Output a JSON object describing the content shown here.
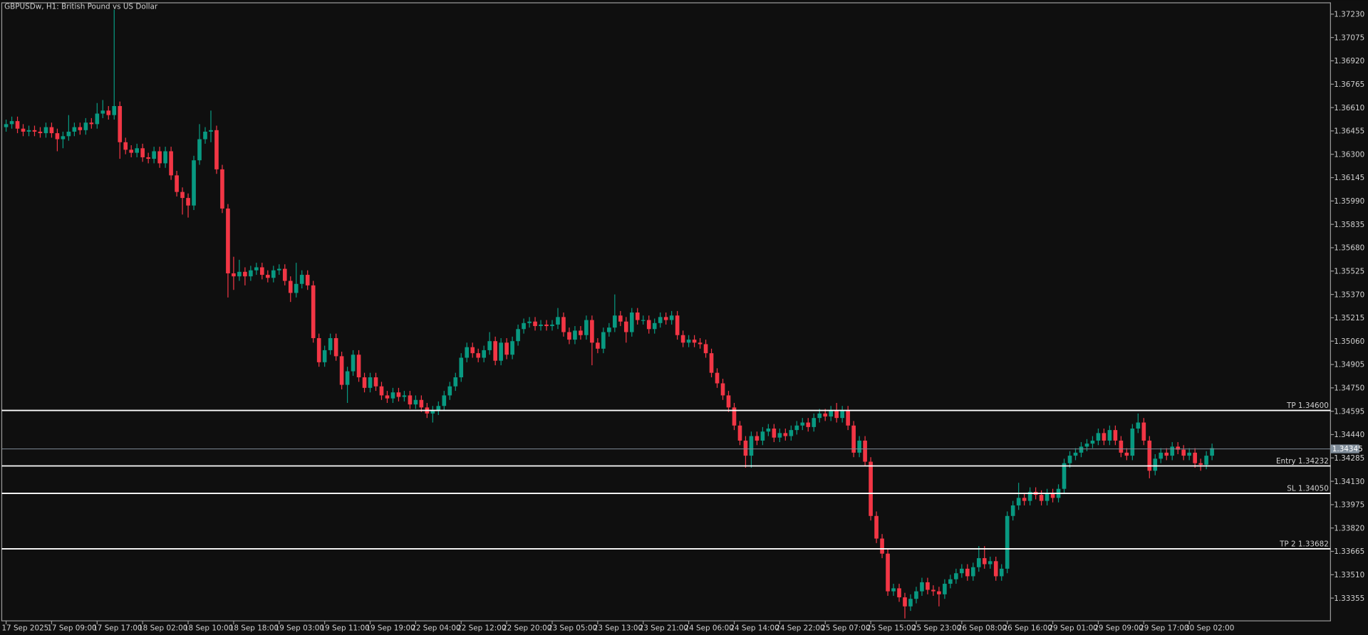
{
  "chart_data": {
    "type": "candlestick",
    "title": "GBPUSDw, H1:  British Pound vs US Dollar",
    "categories": [
      "17 Sep 2025",
      null,
      null,
      null,
      null,
      null,
      null,
      null,
      "17 Sep 09:00",
      null,
      null,
      null,
      null,
      null,
      null,
      null,
      "17 Sep 17:00",
      null,
      null,
      null,
      null,
      null,
      null,
      null,
      "18 Sep 02:00",
      null,
      null,
      null,
      null,
      null,
      null,
      null,
      "18 Sep 10:00",
      null,
      null,
      null,
      null,
      null,
      null,
      null,
      "18 Sep 18:00",
      null,
      null,
      null,
      null,
      null,
      null,
      null,
      "19 Sep 03:00",
      null,
      null,
      null,
      null,
      null,
      null,
      null,
      "19 Sep 11:00",
      null,
      null,
      null,
      null,
      null,
      null,
      null,
      "19 Sep 19:00",
      null,
      null,
      null,
      null,
      null,
      null,
      null,
      "22 Sep 04:00",
      null,
      null,
      null,
      null,
      null,
      null,
      null,
      "22 Sep 12:00",
      null,
      null,
      null,
      null,
      null,
      null,
      null,
      "22 Sep 20:00",
      null,
      null,
      null,
      null,
      null,
      null,
      null,
      "23 Sep 05:00",
      null,
      null,
      null,
      null,
      null,
      null,
      null,
      "23 Sep 13:00",
      null,
      null,
      null,
      null,
      null,
      null,
      null,
      "23 Sep 21:00",
      null,
      null,
      null,
      null,
      null,
      null,
      null,
      "24 Sep 06:00",
      null,
      null,
      null,
      null,
      null,
      null,
      null,
      "24 Sep 14:00",
      null,
      null,
      null,
      null,
      null,
      null,
      null,
      "24 Sep 22:00",
      null,
      null,
      null,
      null,
      null,
      null,
      null,
      "25 Sep 07:00",
      null,
      null,
      null,
      null,
      null,
      null,
      null,
      "25 Sep 15:00",
      null,
      null,
      null,
      null,
      null,
      null,
      null,
      "25 Sep 23:00",
      null,
      null,
      null,
      null,
      null,
      null,
      null,
      "26 Sep 08:00",
      null,
      null,
      null,
      null,
      null,
      null,
      null,
      "26 Sep 16:00",
      null,
      null,
      null,
      null,
      null,
      null,
      null,
      "29 Sep 01:00",
      null,
      null,
      null,
      null,
      null,
      null,
      null,
      "29 Sep 09:00",
      null,
      null,
      null,
      null,
      null,
      null,
      null,
      "29 Sep 17:00",
      null,
      null,
      null,
      null,
      null,
      null,
      null,
      "30 Sep 02:00",
      null,
      null,
      null,
      null
    ],
    "open": [
      1.3648,
      1.365,
      1.3652,
      1.3647,
      1.3645,
      1.3646,
      1.3645,
      1.3644,
      1.3648,
      1.3644,
      1.364,
      1.3642,
      1.3645,
      1.3648,
      1.3646,
      1.3651,
      1.365,
      1.3657,
      1.3659,
      1.3656,
      1.3662,
      1.3638,
      1.3633,
      1.3631,
      1.3634,
      1.3628,
      1.3627,
      1.3632,
      1.3624,
      1.3632,
      1.3616,
      1.3605,
      1.3601,
      1.3596,
      1.3626,
      1.364,
      1.3645,
      1.3646,
      1.362,
      1.3594,
      1.3551,
      1.3549,
      1.3552,
      1.3549,
      1.3553,
      1.3555,
      1.355,
      1.3548,
      1.3553,
      1.3554,
      1.3546,
      1.3538,
      1.3544,
      1.355,
      1.3543,
      1.3508,
      1.3492,
      1.35,
      1.3508,
      1.3496,
      1.3477,
      1.3486,
      1.3497,
      1.3482,
      1.3475,
      1.3482,
      1.3476,
      1.347,
      1.3468,
      1.3472,
      1.3469,
      1.347,
      1.3464,
      1.3467,
      1.3462,
      1.3458,
      1.346,
      1.3463,
      1.347,
      1.3476,
      1.3482,
      1.3495,
      1.3502,
      1.3498,
      1.3495,
      1.35,
      1.3506,
      1.3493,
      1.3505,
      1.3497,
      1.3506,
      1.3514,
      1.3518,
      1.3519,
      1.3516,
      1.3517,
      1.3516,
      1.3517,
      1.3522,
      1.3512,
      1.3507,
      1.3513,
      1.351,
      1.352,
      1.3505,
      1.3501,
      1.3512,
      1.3515,
      1.3523,
      1.3519,
      1.3512,
      1.3525,
      1.352,
      1.352,
      1.3514,
      1.3518,
      1.3522,
      1.352,
      1.3523,
      1.351,
      1.3505,
      1.3507,
      1.3505,
      1.3504,
      1.3498,
      1.3485,
      1.3478,
      1.347,
      1.3462,
      1.345,
      1.344,
      1.343,
      1.3443,
      1.344,
      1.3446,
      1.3448,
      1.3442,
      1.3445,
      1.3443,
      1.3447,
      1.345,
      1.3452,
      1.3449,
      1.3455,
      1.3458,
      1.3456,
      1.346,
      1.3455,
      1.346,
      1.345,
      1.3432,
      1.344,
      1.3426,
      1.339,
      1.3375,
      1.3365,
      1.334,
      1.3342,
      1.3336,
      1.333,
      1.3335,
      1.334,
      1.3346,
      1.3341,
      1.334,
      1.3338,
      1.3345,
      1.3348,
      1.3352,
      1.3355,
      1.335,
      1.3356,
      1.3362,
      1.3358,
      1.336,
      1.335,
      1.3355,
      1.339,
      1.3397,
      1.3402,
      1.34,
      1.3406,
      1.3404,
      1.34,
      1.3405,
      1.3402,
      1.3408,
      1.3425,
      1.343,
      1.3432,
      1.3436,
      1.3438,
      1.344,
      1.3445,
      1.344,
      1.3447,
      1.344,
      1.3432,
      1.343,
      1.3448,
      1.3452,
      1.344,
      1.342,
      1.3428,
      1.3432,
      1.343,
      1.3436,
      1.3434,
      1.343,
      1.3432,
      1.3425,
      1.3424,
      1.343
    ],
    "high": [
      1.3653,
      1.3655,
      1.3655,
      1.365,
      1.3649,
      1.3649,
      1.3648,
      1.3651,
      1.3651,
      1.3647,
      1.3645,
      1.3656,
      1.3651,
      1.3651,
      1.3654,
      1.3654,
      1.3664,
      1.3666,
      1.3662,
      1.3726,
      1.3665,
      1.3641,
      1.3636,
      1.3637,
      1.3637,
      1.3631,
      1.3635,
      1.3635,
      1.3635,
      1.3635,
      1.3619,
      1.3608,
      1.3604,
      1.3629,
      1.365,
      1.3648,
      1.3659,
      1.3649,
      1.3623,
      1.3597,
      1.3562,
      1.356,
      1.3555,
      1.3556,
      1.3558,
      1.3558,
      1.3553,
      1.3556,
      1.3557,
      1.3557,
      1.3549,
      1.3558,
      1.3553,
      1.3553,
      1.3546,
      1.3511,
      1.3503,
      1.3511,
      1.3511,
      1.3499,
      1.3489,
      1.35,
      1.35,
      1.3485,
      1.3485,
      1.3485,
      1.3479,
      1.3473,
      1.3475,
      1.3475,
      1.3473,
      1.3473,
      1.347,
      1.347,
      1.3465,
      1.3463,
      1.3466,
      1.3473,
      1.3479,
      1.3485,
      1.3498,
      1.3505,
      1.3505,
      1.3501,
      1.3503,
      1.3512,
      1.3509,
      1.3508,
      1.3508,
      1.3509,
      1.3517,
      1.3521,
      1.3522,
      1.3522,
      1.352,
      1.352,
      1.352,
      1.3528,
      1.3525,
      1.3515,
      1.3516,
      1.3516,
      1.3523,
      1.3523,
      1.3508,
      1.3515,
      1.3518,
      1.3537,
      1.3526,
      1.3522,
      1.3528,
      1.3528,
      1.3523,
      1.3523,
      1.3521,
      1.3525,
      1.3525,
      1.3526,
      1.3526,
      1.3513,
      1.351,
      1.351,
      1.3508,
      1.3507,
      1.3501,
      1.3488,
      1.3481,
      1.3473,
      1.3465,
      1.3453,
      1.3443,
      1.3446,
      1.3446,
      1.3449,
      1.3451,
      1.3451,
      1.3448,
      1.3448,
      1.345,
      1.3453,
      1.3455,
      1.3455,
      1.3458,
      1.3461,
      1.3461,
      1.3463,
      1.3465,
      1.3463,
      1.3463,
      1.3453,
      1.3443,
      1.3443,
      1.3429,
      1.3393,
      1.3378,
      1.3368,
      1.3345,
      1.3345,
      1.3339,
      1.3338,
      1.3343,
      1.3349,
      1.3349,
      1.3344,
      1.3343,
      1.3348,
      1.3351,
      1.3355,
      1.3358,
      1.3358,
      1.3359,
      1.337,
      1.337,
      1.3363,
      1.3363,
      1.3358,
      1.3393,
      1.34,
      1.3412,
      1.3405,
      1.3409,
      1.3409,
      1.3407,
      1.3408,
      1.3408,
      1.3411,
      1.3428,
      1.3433,
      1.3435,
      1.3439,
      1.3441,
      1.3443,
      1.3448,
      1.3448,
      1.345,
      1.345,
      1.3443,
      1.3435,
      1.3451,
      1.3458,
      1.3455,
      1.3443,
      1.3431,
      1.3435,
      1.3435,
      1.3439,
      1.3439,
      1.3437,
      1.3435,
      1.3435,
      1.3428,
      1.3433,
      1.3438
    ],
    "low": [
      1.3645,
      1.3647,
      1.3644,
      1.3642,
      1.3642,
      1.3642,
      1.3641,
      1.3641,
      1.3641,
      1.3632,
      1.3634,
      1.3639,
      1.3642,
      1.3643,
      1.3643,
      1.3647,
      1.3647,
      1.3654,
      1.3653,
      1.3653,
      1.3627,
      1.363,
      1.3628,
      1.3628,
      1.3625,
      1.3624,
      1.3624,
      1.3621,
      1.3621,
      1.3613,
      1.3602,
      1.359,
      1.3588,
      1.3593,
      1.3623,
      1.3637,
      1.3638,
      1.3617,
      1.3591,
      1.3535,
      1.354,
      1.3546,
      1.3543,
      1.3546,
      1.355,
      1.3547,
      1.3545,
      1.3545,
      1.355,
      1.3543,
      1.3532,
      1.3535,
      1.3541,
      1.354,
      1.3505,
      1.3489,
      1.3489,
      1.3497,
      1.3493,
      1.3474,
      1.3465,
      1.3483,
      1.3479,
      1.3472,
      1.3472,
      1.3473,
      1.3467,
      1.3465,
      1.3465,
      1.3466,
      1.3466,
      1.3461,
      1.3461,
      1.3459,
      1.3455,
      1.3452,
      1.3457,
      1.346,
      1.3467,
      1.3473,
      1.3479,
      1.3492,
      1.3495,
      1.3492,
      1.3492,
      1.3497,
      1.349,
      1.349,
      1.3494,
      1.3494,
      1.3503,
      1.3511,
      1.3515,
      1.3513,
      1.3513,
      1.3513,
      1.3513,
      1.3514,
      1.3509,
      1.3504,
      1.3504,
      1.3507,
      1.3507,
      1.349,
      1.3498,
      1.3498,
      1.3509,
      1.3512,
      1.3516,
      1.3505,
      1.3509,
      1.3517,
      1.3517,
      1.3511,
      1.3511,
      1.3515,
      1.3517,
      1.3517,
      1.3507,
      1.3502,
      1.3502,
      1.3502,
      1.3501,
      1.3495,
      1.3482,
      1.3475,
      1.3467,
      1.3459,
      1.3447,
      1.3437,
      1.3422,
      1.3422,
      1.3437,
      1.3437,
      1.3443,
      1.3439,
      1.3439,
      1.344,
      1.344,
      1.3444,
      1.3447,
      1.3446,
      1.3446,
      1.3452,
      1.3453,
      1.3453,
      1.3452,
      1.3452,
      1.3447,
      1.3429,
      1.3429,
      1.3423,
      1.3387,
      1.3372,
      1.3362,
      1.3337,
      1.3337,
      1.3333,
      1.3322,
      1.3327,
      1.3332,
      1.3337,
      1.3338,
      1.3337,
      1.333,
      1.3335,
      1.3342,
      1.3345,
      1.3349,
      1.3347,
      1.3347,
      1.3353,
      1.3355,
      1.3355,
      1.3347,
      1.3347,
      1.3352,
      1.3387,
      1.3394,
      1.3397,
      1.3397,
      1.3401,
      1.3397,
      1.3397,
      1.3399,
      1.3399,
      1.3405,
      1.3422,
      1.3427,
      1.3429,
      1.3433,
      1.3435,
      1.3437,
      1.3437,
      1.3437,
      1.3437,
      1.3429,
      1.3427,
      1.3427,
      1.3445,
      1.3437,
      1.3415,
      1.3417,
      1.3425,
      1.3427,
      1.3427,
      1.3431,
      1.3427,
      1.3427,
      1.3422,
      1.342,
      1.3421,
      1.3427
    ],
    "close": [
      1.365,
      1.3652,
      1.3647,
      1.3645,
      1.3646,
      1.3645,
      1.3644,
      1.3648,
      1.3644,
      1.364,
      1.3642,
      1.3645,
      1.3648,
      1.3646,
      1.3651,
      1.365,
      1.3657,
      1.3659,
      1.3656,
      1.3662,
      1.3638,
      1.3633,
      1.3631,
      1.3634,
      1.3628,
      1.3627,
      1.3632,
      1.3624,
      1.3632,
      1.3616,
      1.3605,
      1.3601,
      1.3596,
      1.3626,
      1.364,
      1.3645,
      1.3646,
      1.362,
      1.3594,
      1.3551,
      1.3549,
      1.3552,
      1.3549,
      1.3553,
      1.3555,
      1.355,
      1.3548,
      1.3553,
      1.3554,
      1.3546,
      1.3538,
      1.3544,
      1.355,
      1.3543,
      1.3508,
      1.3492,
      1.35,
      1.3508,
      1.3496,
      1.3477,
      1.3486,
      1.3497,
      1.3482,
      1.3475,
      1.3482,
      1.3476,
      1.347,
      1.3468,
      1.3472,
      1.3469,
      1.347,
      1.3464,
      1.3467,
      1.3462,
      1.3458,
      1.346,
      1.3463,
      1.347,
      1.3476,
      1.3482,
      1.3495,
      1.3502,
      1.3498,
      1.3495,
      1.35,
      1.3506,
      1.3493,
      1.3505,
      1.3497,
      1.3506,
      1.3514,
      1.3518,
      1.3519,
      1.3516,
      1.3517,
      1.3516,
      1.3517,
      1.3522,
      1.3512,
      1.3507,
      1.3513,
      1.351,
      1.352,
      1.3505,
      1.3501,
      1.3512,
      1.3515,
      1.3523,
      1.3519,
      1.3512,
      1.3525,
      1.352,
      1.352,
      1.3514,
      1.3518,
      1.3522,
      1.352,
      1.3523,
      1.351,
      1.3505,
      1.3507,
      1.3505,
      1.3504,
      1.3498,
      1.3485,
      1.3478,
      1.347,
      1.3462,
      1.345,
      1.344,
      1.343,
      1.3443,
      1.344,
      1.3446,
      1.3448,
      1.3442,
      1.3445,
      1.3443,
      1.3447,
      1.345,
      1.3452,
      1.3449,
      1.3455,
      1.3458,
      1.3456,
      1.346,
      1.3455,
      1.346,
      1.345,
      1.3432,
      1.344,
      1.3426,
      1.339,
      1.3375,
      1.3365,
      1.334,
      1.3342,
      1.3336,
      1.333,
      1.3335,
      1.334,
      1.3346,
      1.3341,
      1.334,
      1.3338,
      1.3345,
      1.3348,
      1.3352,
      1.3355,
      1.335,
      1.3356,
      1.3362,
      1.3358,
      1.336,
      1.335,
      1.3355,
      1.339,
      1.3397,
      1.3402,
      1.34,
      1.3406,
      1.3404,
      1.34,
      1.3405,
      1.3402,
      1.3408,
      1.3425,
      1.343,
      1.3432,
      1.3436,
      1.3438,
      1.344,
      1.3445,
      1.344,
      1.3447,
      1.344,
      1.3432,
      1.343,
      1.3448,
      1.3452,
      1.344,
      1.342,
      1.3428,
      1.3432,
      1.343,
      1.3436,
      1.3434,
      1.343,
      1.3432,
      1.3425,
      1.3424,
      1.343,
      1.3435
    ],
    "up_color": "#089981",
    "down_color": "#f23645",
    "ylim": [
      1.33204,
      1.37305
    ],
    "yticks": [
      {
        "value": 1.3723,
        "label": "1.37230"
      },
      1.37075,
      {
        "value": 1.3692,
        "label": "1.36920"
      },
      1.36765,
      {
        "value": 1.3661,
        "label": "1.36610"
      },
      1.36455,
      {
        "value": 1.363,
        "label": "1.36300"
      },
      1.36145,
      {
        "value": 1.3599,
        "label": "1.35990"
      },
      1.35835,
      {
        "value": 1.3568,
        "label": "1.35680"
      },
      1.35525,
      {
        "value": 1.3537,
        "label": "1.35370"
      },
      1.35215,
      {
        "value": 1.3506,
        "label": "1.35060"
      },
      1.34905,
      {
        "value": 1.3475,
        "label": "1.34750"
      },
      1.34595,
      {
        "value": 1.3444,
        "label": "1.34440"
      },
      1.34285,
      {
        "value": 1.3413,
        "label": "1.34130"
      },
      1.33975,
      {
        "value": 1.3382,
        "label": "1.33820"
      },
      1.33665,
      {
        "value": 1.3351,
        "label": "1.33510"
      },
      1.33355
    ],
    "levels": [
      {
        "label": "TP 1.34600",
        "value": 1.346
      },
      {
        "label": "Entry 1.34232",
        "value": 1.34232
      },
      {
        "label": "SL 1.34050",
        "value": 1.3405
      },
      {
        "label": "TP 2 1.33682",
        "value": 1.33682
      }
    ],
    "level_color": "#ffffff",
    "current_price": 1.34345,
    "current_color": "#7f8c99"
  }
}
